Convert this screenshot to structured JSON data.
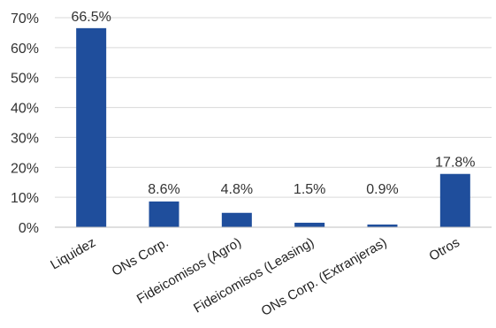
{
  "chart_data": {
    "type": "bar",
    "categories": [
      "Liquidez",
      "ONs Corp.",
      "Fideicomisos (Agro)",
      "Fideicomisos (Leasing)",
      "ONs Corp. (Extranjeras)",
      "Otros"
    ],
    "values": [
      66.5,
      8.6,
      4.8,
      1.5,
      0.9,
      17.8
    ],
    "data_labels": [
      "66.5%",
      "8.6%",
      "4.8%",
      "1.5%",
      "0.9%",
      "17.8%"
    ],
    "yticks": [
      "0%",
      "10%",
      "20%",
      "30%",
      "40%",
      "50%",
      "60%",
      "70%"
    ],
    "ylim": [
      0,
      70
    ],
    "grid": true,
    "colors": {
      "bar": "#1f4e9c"
    }
  }
}
